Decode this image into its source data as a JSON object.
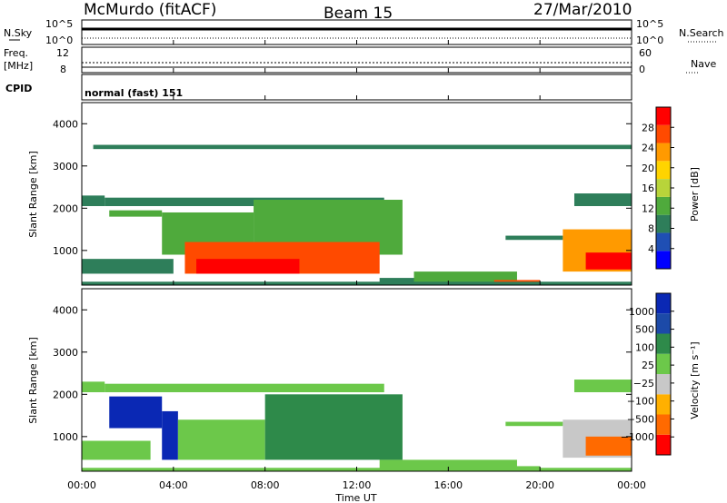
{
  "header": {
    "station": "McMurdo (fitACF)",
    "beam": "Beam 15",
    "date": "27/Mar/2010"
  },
  "status_panels": {
    "nsky_label": "N.Sky",
    "nsearch_label": "N.Search",
    "noise_ticks": [
      "10^5",
      "10^0"
    ],
    "freq_label_1": "Freq.",
    "freq_label_2": "[MHz]",
    "freq_ticks": [
      "12",
      "8"
    ],
    "nave_label": "Nave",
    "nave_ticks": [
      "60",
      "0"
    ],
    "cpid_label": "CPID",
    "cpid_value": "normal (fast) 151"
  },
  "axes": {
    "ylabel": "Slant Range [km]",
    "xlabel": "Time UT",
    "y_ticks": [
      "4000",
      "3000",
      "2000",
      "1000"
    ],
    "x_ticks": [
      "00:00",
      "04:00",
      "08:00",
      "12:00",
      "16:00",
      "20:00",
      "00:00"
    ]
  },
  "colorbars": {
    "power_label": "Power [dB]",
    "power_ticks": [
      "28",
      "24",
      "20",
      "16",
      "12",
      "8",
      "4"
    ],
    "velocity_label": "Velocity [m s⁻¹]",
    "velocity_ticks": [
      "1000",
      "500",
      "100",
      "25",
      "−25",
      "−100",
      "−500",
      "−1000"
    ]
  },
  "chart_data": [
    {
      "type": "heatmap",
      "name": "power",
      "xlabel": "Time UT",
      "ylabel": "Slant Range [km]",
      "x_range_hours": [
        0,
        24
      ],
      "ylim_km": [
        180,
        4500
      ],
      "colorbar": {
        "label": "Power [dB]",
        "range": [
          0,
          30
        ],
        "ticks": [
          4,
          8,
          12,
          16,
          20,
          24,
          28
        ]
      },
      "colors": [
        "#0000ff",
        "#1f4fb4",
        "#2e7e5a",
        "#4faa3c",
        "#b8d43a",
        "#ffd400",
        "#ff9a00",
        "#ff4a00",
        "#ff0000"
      ],
      "regions": [
        {
          "t0": 1.0,
          "t1": 13.2,
          "r0": 2050,
          "r1": 2250,
          "value": 8
        },
        {
          "t0": 0.0,
          "t1": 1.0,
          "r0": 2050,
          "r1": 2300,
          "value": 8
        },
        {
          "t0": 1.2,
          "t1": 3.5,
          "r0": 1800,
          "r1": 1950,
          "value": 10
        },
        {
          "t0": 3.5,
          "t1": 7.5,
          "r0": 900,
          "r1": 1900,
          "value": 10
        },
        {
          "t0": 7.5,
          "t1": 14.0,
          "r0": 900,
          "r1": 2200,
          "value": 12
        },
        {
          "t0": 4.5,
          "t1": 13.0,
          "r0": 450,
          "r1": 1200,
          "value": 24
        },
        {
          "t0": 5.0,
          "t1": 9.5,
          "r0": 450,
          "r1": 800,
          "value": 28
        },
        {
          "t0": 0.0,
          "t1": 4.0,
          "r0": 450,
          "r1": 800,
          "value": 8
        },
        {
          "t0": 13.0,
          "t1": 16.0,
          "r0": 200,
          "r1": 350,
          "value": 8
        },
        {
          "t0": 14.5,
          "t1": 19.0,
          "r0": 200,
          "r1": 500,
          "value": 12
        },
        {
          "t0": 18.0,
          "t1": 20.0,
          "r0": 200,
          "r1": 300,
          "value": 24
        },
        {
          "t0": 18.5,
          "t1": 21.0,
          "r0": 1250,
          "r1": 1350,
          "value": 8
        },
        {
          "t0": 21.0,
          "t1": 24.0,
          "r0": 500,
          "r1": 1500,
          "value": 20
        },
        {
          "t0": 22.0,
          "t1": 24.0,
          "r0": 550,
          "r1": 950,
          "value": 28
        },
        {
          "t0": 21.5,
          "t1": 24.0,
          "r0": 2050,
          "r1": 2350,
          "value": 8
        },
        {
          "t0": 0.5,
          "t1": 24.0,
          "r0": 3400,
          "r1": 3500,
          "value": 8
        },
        {
          "t0": 0.0,
          "t1": 24.0,
          "r0": 180,
          "r1": 260,
          "value": 8
        }
      ]
    },
    {
      "type": "heatmap",
      "name": "velocity",
      "xlabel": "Time UT",
      "ylabel": "Slant Range [km]",
      "x_range_hours": [
        0,
        24
      ],
      "ylim_km": [
        180,
        4500
      ],
      "colorbar": {
        "label": "Velocity [m s⁻¹]",
        "range": [
          -1000,
          1000
        ],
        "ticks": [
          1000,
          500,
          100,
          25,
          -25,
          -100,
          -500,
          -1000
        ]
      },
      "colors": [
        "#ff0000",
        "#ff6a00",
        "#ffb000",
        "#c8c8c8",
        "#6cc84a",
        "#2e8a4a",
        "#1c4aa8",
        "#0a28b4"
      ],
      "regions": [
        {
          "t0": 1.0,
          "t1": 13.2,
          "r0": 2050,
          "r1": 2250,
          "value": 0
        },
        {
          "t0": 0.0,
          "t1": 1.0,
          "r0": 2050,
          "r1": 2300,
          "value": 0
        },
        {
          "t0": 1.2,
          "t1": 3.5,
          "r0": 1200,
          "r1": 1950,
          "value": 900
        },
        {
          "t0": 3.5,
          "t1": 4.2,
          "r0": 450,
          "r1": 1600,
          "value": 900
        },
        {
          "t0": 4.2,
          "t1": 8.0,
          "r0": 450,
          "r1": 1400,
          "value": 150
        },
        {
          "t0": 8.0,
          "t1": 14.0,
          "r0": 450,
          "r1": 2000,
          "value": 300
        },
        {
          "t0": 0.0,
          "t1": 3.0,
          "r0": 450,
          "r1": 900,
          "value": 150
        },
        {
          "t0": 13.0,
          "t1": 19.0,
          "r0": 200,
          "r1": 450,
          "value": 200
        },
        {
          "t0": 18.0,
          "t1": 20.0,
          "r0": 200,
          "r1": 300,
          "value": 0
        },
        {
          "t0": 18.5,
          "t1": 21.0,
          "r0": 1250,
          "r1": 1350,
          "value": 0
        },
        {
          "t0": 21.0,
          "t1": 24.0,
          "r0": 500,
          "r1": 1400,
          "value": -150
        },
        {
          "t0": 22.0,
          "t1": 24.0,
          "r0": 550,
          "r1": 1000,
          "value": -600
        },
        {
          "t0": 21.5,
          "t1": 24.0,
          "r0": 2050,
          "r1": 2350,
          "value": 0
        },
        {
          "t0": 0.0,
          "t1": 24.0,
          "r0": 180,
          "r1": 260,
          "value": 0
        }
      ]
    }
  ]
}
